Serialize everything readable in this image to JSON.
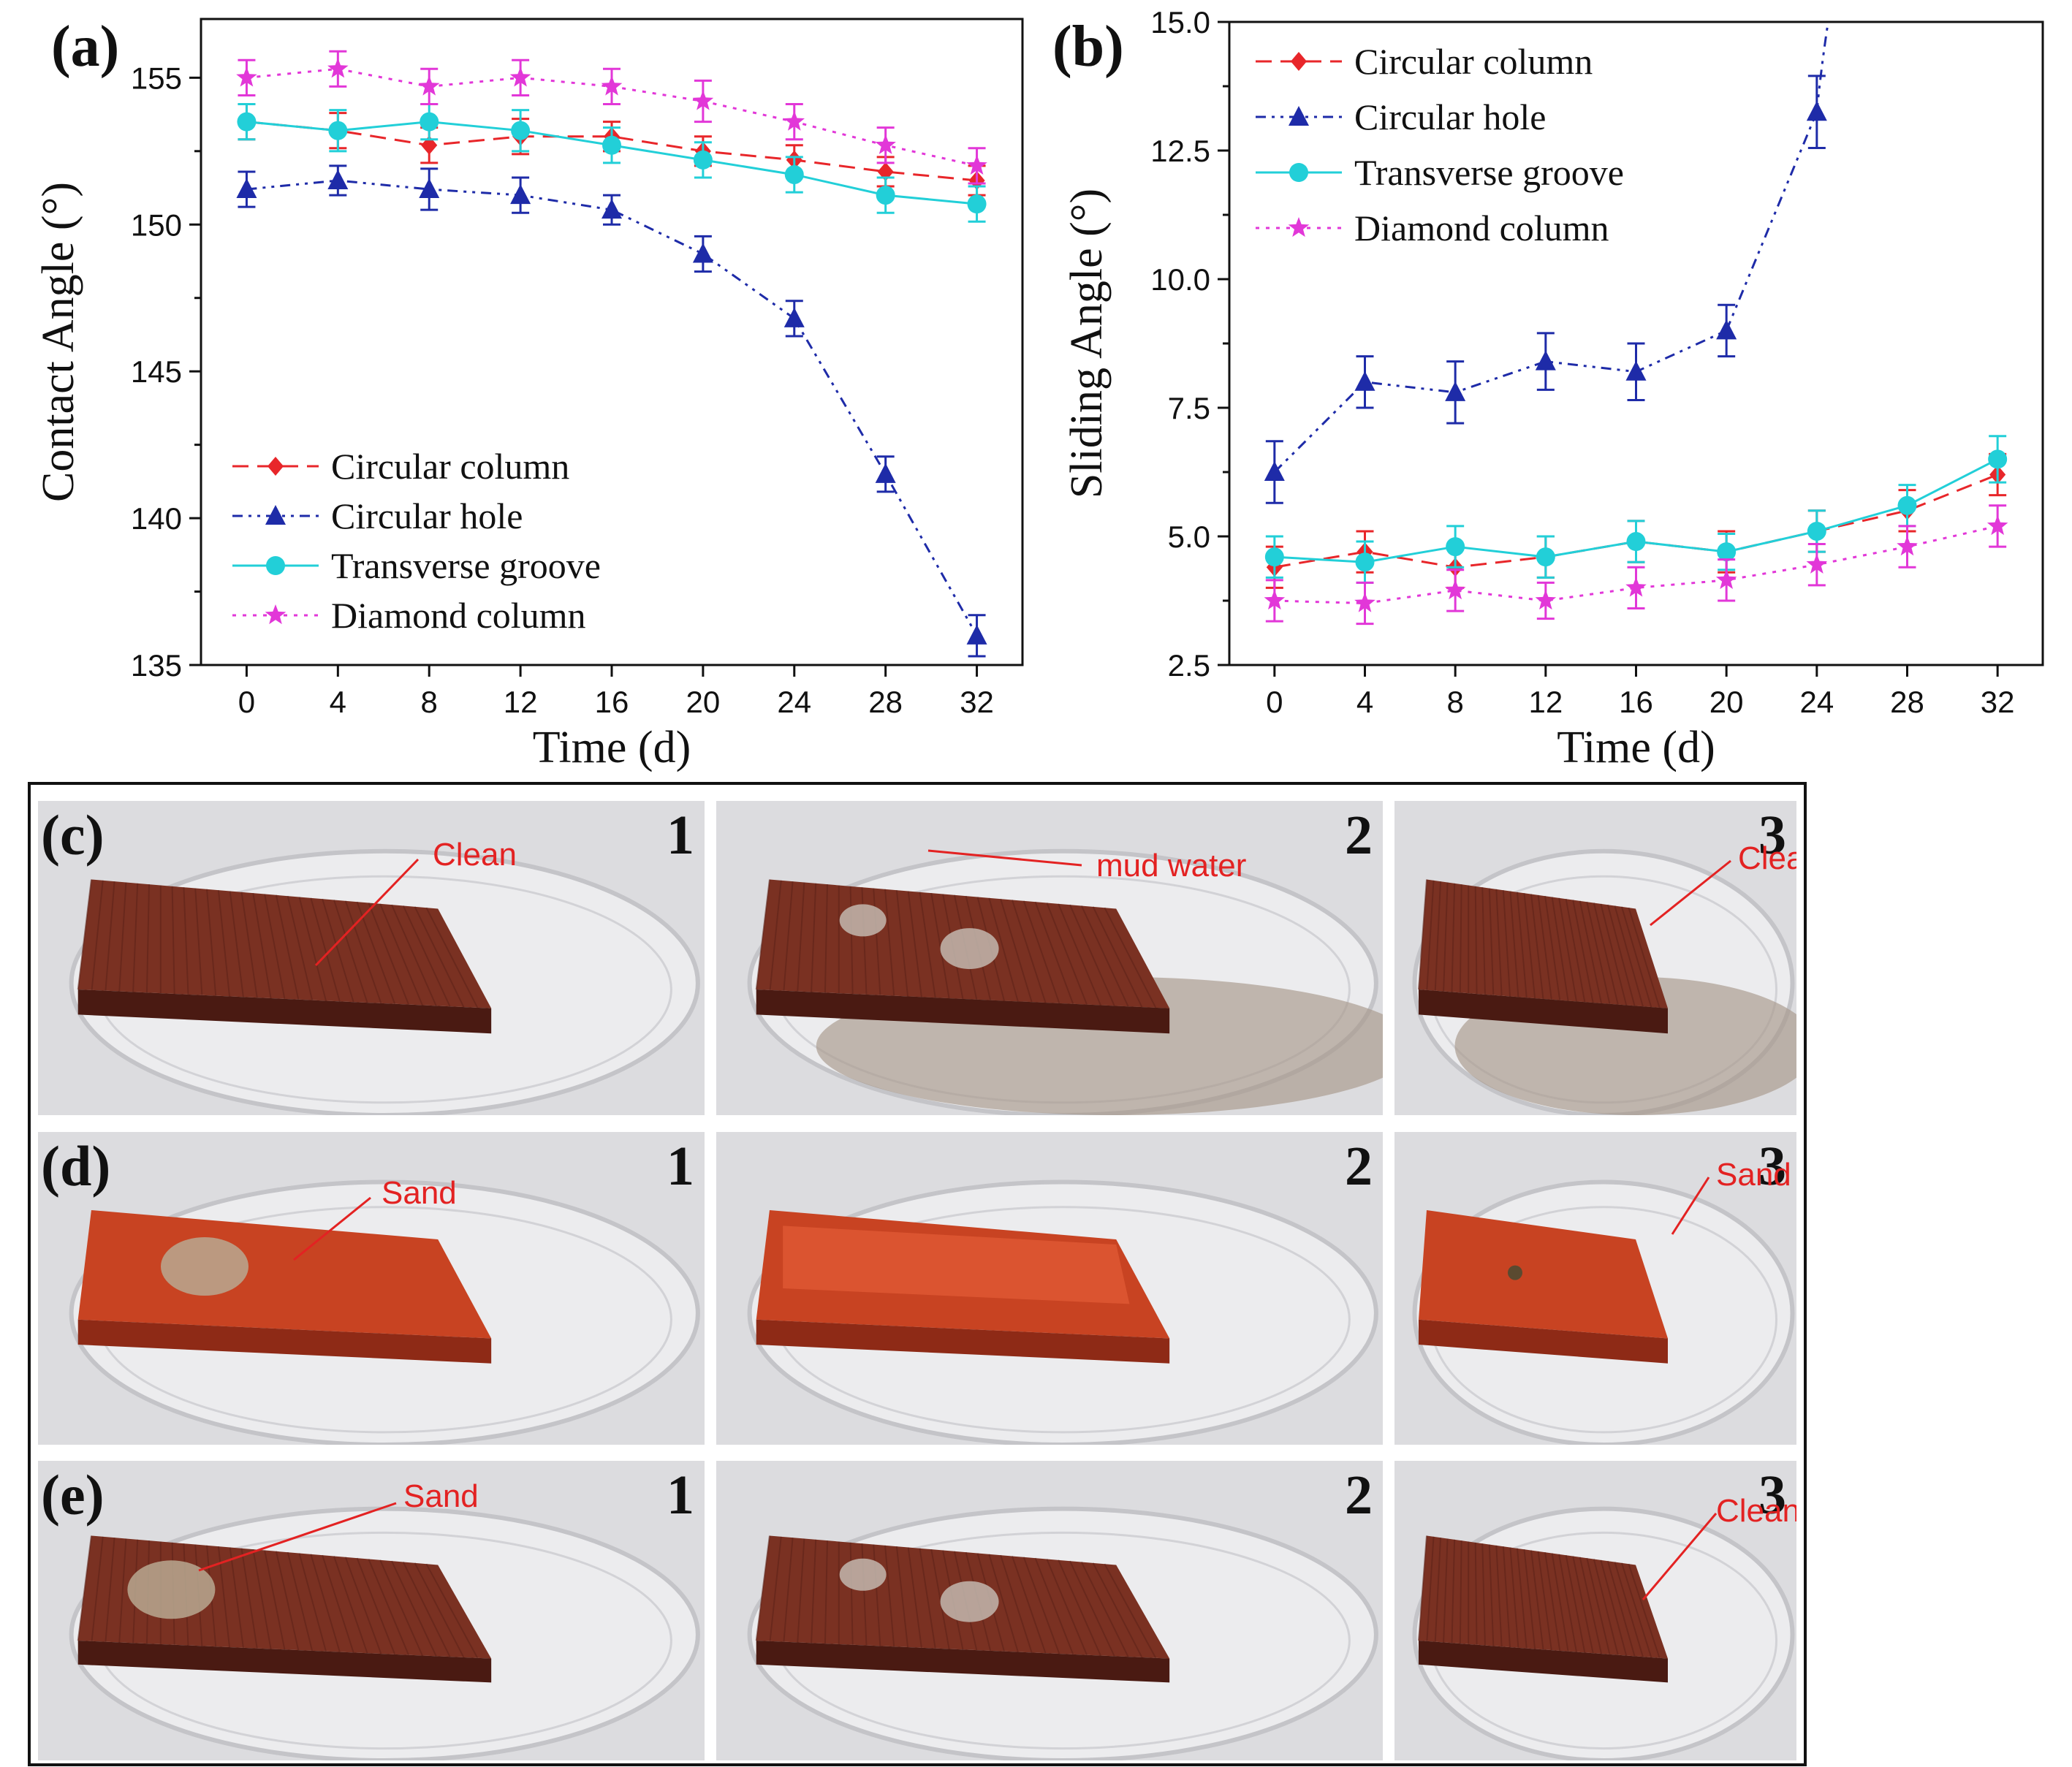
{
  "chart_data": [
    {
      "type": "line",
      "panel_label": "(a)",
      "xlabel": "Time (d)",
      "ylabel": "Contact Angle  (°)",
      "x": [
        0,
        4,
        8,
        12,
        16,
        20,
        24,
        28,
        32
      ],
      "xlim": [
        -2,
        34
      ],
      "ylim": [
        135,
        157
      ],
      "xticks": [
        "0",
        "4",
        "8",
        "12",
        "16",
        "20",
        "24",
        "28",
        "32"
      ],
      "yticks": [
        "135",
        "140",
        "145",
        "150",
        "155"
      ],
      "legend_position": "lower-left",
      "series": [
        {
          "name": "Circular column",
          "color": "#e8262a",
          "marker": "diamond",
          "dash": "dashed",
          "values": [
            153.5,
            153.2,
            152.7,
            153.0,
            153.0,
            152.5,
            152.2,
            151.8,
            151.5
          ],
          "errors": [
            0.6,
            0.6,
            0.6,
            0.6,
            0.5,
            0.5,
            0.5,
            0.5,
            0.5
          ]
        },
        {
          "name": "Circular hole",
          "color": "#1e2ba8",
          "marker": "triangle",
          "dash": "dashdotdot",
          "values": [
            151.2,
            151.5,
            151.2,
            151.0,
            150.5,
            149.0,
            146.8,
            141.5,
            136.0
          ],
          "errors": [
            0.6,
            0.5,
            0.7,
            0.6,
            0.5,
            0.6,
            0.6,
            0.6,
            0.7
          ]
        },
        {
          "name": "Transverse groove",
          "color": "#22cfd8",
          "marker": "circle",
          "dash": "solid",
          "values": [
            153.5,
            153.2,
            153.5,
            153.2,
            152.7,
            152.2,
            151.7,
            151.0,
            150.7
          ],
          "errors": [
            0.6,
            0.7,
            0.6,
            0.7,
            0.6,
            0.6,
            0.6,
            0.6,
            0.6
          ]
        },
        {
          "name": "Diamond column",
          "color": "#e237d8",
          "marker": "star",
          "dash": "dotted",
          "values": [
            155.0,
            155.3,
            154.7,
            155.0,
            154.7,
            154.2,
            153.5,
            152.7,
            152.0
          ],
          "errors": [
            0.6,
            0.6,
            0.6,
            0.6,
            0.6,
            0.7,
            0.6,
            0.6,
            0.6
          ]
        }
      ]
    },
    {
      "type": "line",
      "panel_label": "(b)",
      "xlabel": "Time (d)",
      "ylabel": "Sliding Angle  (°)",
      "x": [
        0,
        4,
        8,
        12,
        16,
        20,
        24,
        28,
        32
      ],
      "xlim": [
        -2,
        34
      ],
      "ylim": [
        2.5,
        15.0
      ],
      "xticks": [
        "0",
        "4",
        "8",
        "12",
        "16",
        "20",
        "24",
        "28",
        "32"
      ],
      "yticks": [
        "2.5",
        "5.0",
        "7.5",
        "10.0",
        "12.5",
        "15.0"
      ],
      "legend_position": "top-left",
      "series": [
        {
          "name": "Circular column",
          "color": "#e8262a",
          "marker": "diamond",
          "dash": "dashed",
          "values": [
            4.4,
            4.7,
            4.4,
            4.6,
            4.9,
            4.7,
            5.1,
            5.5,
            6.2
          ],
          "errors": [
            0.4,
            0.4,
            0.4,
            0.4,
            0.4,
            0.4,
            0.4,
            0.4,
            0.4
          ]
        },
        {
          "name": "Circular hole",
          "color": "#1e2ba8",
          "marker": "triangle",
          "dash": "dashdotdot",
          "values": [
            6.25,
            8.0,
            7.8,
            8.4,
            8.2,
            9.0,
            13.25,
            null,
            null
          ],
          "errors": [
            0.6,
            0.5,
            0.6,
            0.55,
            0.55,
            0.5,
            0.7,
            null,
            null
          ],
          "extends_beyond_top": true
        },
        {
          "name": "Transverse groove",
          "color": "#22cfd8",
          "marker": "circle",
          "dash": "solid",
          "values": [
            4.6,
            4.5,
            4.8,
            4.6,
            4.9,
            4.7,
            5.1,
            5.6,
            6.5
          ],
          "errors": [
            0.4,
            0.4,
            0.4,
            0.4,
            0.4,
            0.35,
            0.4,
            0.4,
            0.45
          ]
        },
        {
          "name": "Diamond column",
          "color": "#e237d8",
          "marker": "star",
          "dash": "dotted",
          "values": [
            3.75,
            3.7,
            3.95,
            3.75,
            4.0,
            4.15,
            4.45,
            4.8,
            5.2
          ],
          "errors": [
            0.4,
            0.4,
            0.4,
            0.35,
            0.4,
            0.4,
            0.4,
            0.4,
            0.4
          ]
        }
      ]
    }
  ],
  "photos": {
    "rows": [
      {
        "label": "(c)",
        "cells": [
          {
            "number": "1",
            "annotation": "Clean",
            "scene": "grooved_plate"
          },
          {
            "number": "2",
            "annotation": "mud water",
            "scene": "grooved_plate_with_droplets"
          },
          {
            "number": "3",
            "annotation": "Clean",
            "scene": "grooved_plate_clean_mud_pool"
          }
        ]
      },
      {
        "label": "(d)",
        "cells": [
          {
            "number": "1",
            "annotation": "Sand",
            "scene": "smooth_plate_with_sand"
          },
          {
            "number": "2",
            "annotation": "",
            "scene": "smooth_plate_water_film"
          },
          {
            "number": "3",
            "annotation": "Sand",
            "scene": "smooth_plate_sand_left"
          }
        ]
      },
      {
        "label": "(e)",
        "cells": [
          {
            "number": "1",
            "annotation": "Sand",
            "scene": "grooved_plate_with_sand"
          },
          {
            "number": "2",
            "annotation": "",
            "scene": "grooved_plate_water_drops"
          },
          {
            "number": "3",
            "annotation": "Clean",
            "scene": "grooved_plate_cleaned"
          }
        ]
      }
    ]
  },
  "colors": {
    "annotation": "#e32222",
    "grooved_plate": "#6e2a1c",
    "smooth_plate": "#c0391c",
    "dish_bg": "#e6e6e8"
  }
}
